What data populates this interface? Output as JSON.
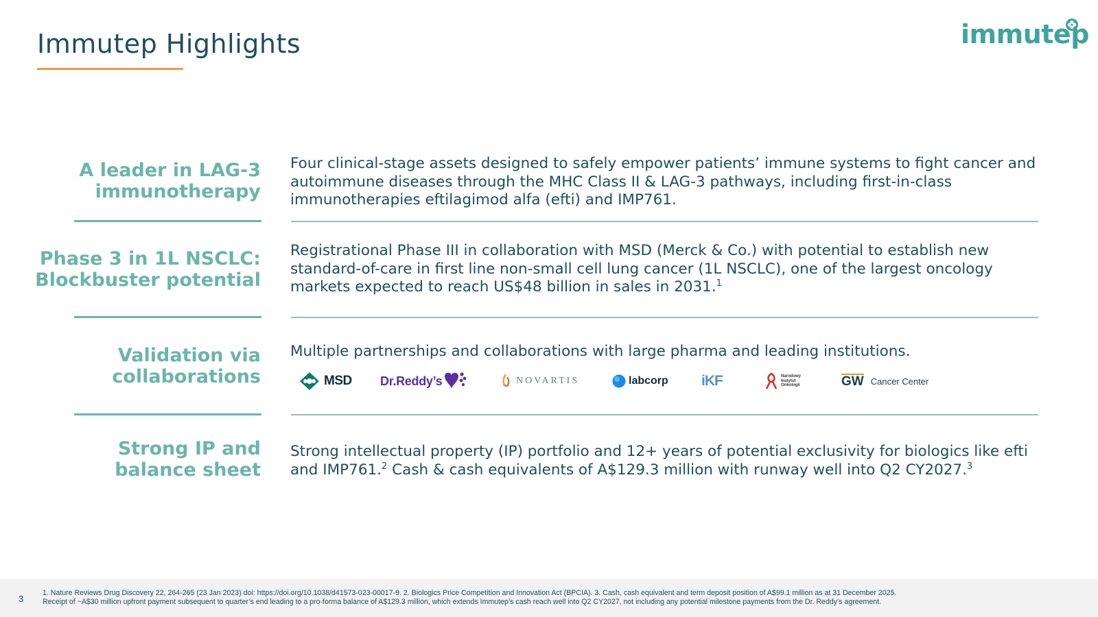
{
  "header": {
    "title": "Immutep Highlights",
    "logo_text": "immutep",
    "accent_color": "#f39a3a",
    "brand_color": "#3fa3a0"
  },
  "rows": [
    {
      "heading_lines": [
        "A leader in LAG-3",
        "immunotherapy"
      ],
      "text": "Four clinical-stage assets designed to safely empower patients’ immune systems to fight cancer and autoimmune diseases through the MHC Class II & LAG-3 pathways, including first-in-class immunotherapies eftilagimod alfa (efti) and IMP761."
    },
    {
      "heading_lines": [
        "Phase 3 in 1L NSCLC:",
        "Blockbuster potential"
      ],
      "text": "Registrational Phase III in collaboration with MSD (Merck & Co.) with potential to establish new standard-of-care in first line non-small cell lung cancer (1L NSCLC), one of the largest oncology markets expected to reach US$48 billion in sales in 2031.",
      "sup": "1"
    },
    {
      "heading_lines": [
        "Validation via",
        "collaborations"
      ],
      "text": "Multiple partnerships and collaborations with large pharma and leading institutions."
    },
    {
      "heading_lines": [
        "Strong IP and",
        "balance sheet"
      ],
      "text_part1": "Strong intellectual property (IP) portfolio and 12+ years of potential exclusivity for biologics like efti and IMP761.",
      "sup1": "2",
      "text_part2": " Cash & cash equivalents of A$129.3 million with runway well into Q2 CY2027.",
      "sup2": "3"
    }
  ],
  "partners": {
    "msd": "MSD",
    "reddy": "Dr.Reddy’s",
    "novartis": "NOVARTIS",
    "labcorp": "labcorp",
    "ikf": "iKF",
    "nio_lines": [
      "Narodowy",
      "Instytut",
      "Onkologii"
    ],
    "gw_mark": "GW",
    "gw_name": "Cancer Center"
  },
  "footer": {
    "page_number": "3",
    "line1": "1. Nature Reviews Drug Discovery 22, 264-265 (23 Jan 2023) doi: https://doi.org/10.1038/d41573-023-00017-9. 2. Biologics Price Competition and Innovation Act (BPCIA). 3. Cash, cash equivalent and term deposit position of A$99.1 million as at 31 December 2025.",
    "line2": "Receipt of ~A$30 million upfront payment subsequent to quarter’s end leading to a pro-forma balance of A$129.3 million, which extends Immutep’s cash reach well into Q2 CY2027, not including any potential milestone payments from the Dr. Reddy’s agreement."
  }
}
